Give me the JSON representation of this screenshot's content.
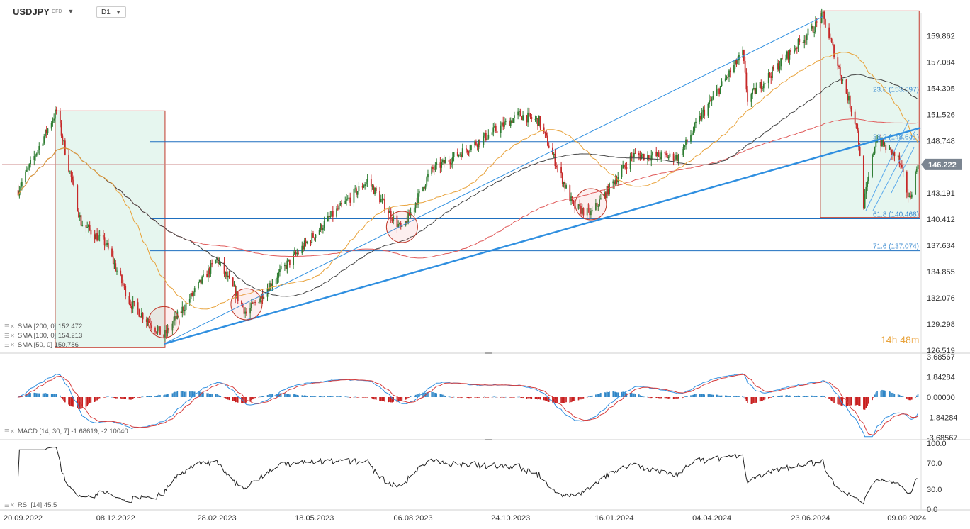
{
  "header": {
    "symbol": "USDJPY",
    "symbol_sub": "CFD",
    "timeframe": "D1"
  },
  "countdown": {
    "hours": "14",
    "h": "h",
    "minutes": "48",
    "m": "m"
  },
  "colors": {
    "up": "#2e7d32",
    "down": "#c62828",
    "sma200": "#e05a5a",
    "sma100": "#444444",
    "sma50": "#e8a23a",
    "trend": "#2f8fe0",
    "level": "#1e6fbf",
    "zone_fill": "#e6f6ef",
    "zone_border": "#c0392b",
    "macd_line": "#2f8fe0",
    "signal_line": "#d63c3c",
    "hist_pos": "#2f86c7",
    "hist_neg": "#c81e1e"
  },
  "chart_data": [
    {
      "type": "candlestick",
      "symbol": "USDJPY",
      "price_axis": [
        "159.862",
        "157.084",
        "154.305",
        "151.526",
        "148.748",
        "146.222",
        "143.191",
        "140.412",
        "137.634",
        "134.855",
        "132.076",
        "129.298",
        "126.519"
      ],
      "ylim": [
        126.519,
        162.0
      ],
      "x_labels": [
        "20.09.2022",
        "08.12.2022",
        "28.02.2023",
        "18.05.2023",
        "06.08.2023",
        "24.10.2023",
        "16.01.2024",
        "04.04.2024",
        "23.06.2024",
        "09.09.2024"
      ],
      "current_price": "146.222",
      "close_anchors": [
        [
          "2022-09-20",
          143.5
        ],
        [
          "2022-10-21",
          151.9
        ],
        [
          "2022-11-10",
          140.0
        ],
        [
          "2022-11-30",
          137.8
        ],
        [
          "2022-12-20",
          131.5
        ],
        [
          "2023-01-16",
          128.0
        ],
        [
          "2023-02-28",
          136.2
        ],
        [
          "2023-03-24",
          130.4
        ],
        [
          "2023-04-20",
          134.8
        ],
        [
          "2023-05-30",
          140.5
        ],
        [
          "2023-06-30",
          144.5
        ],
        [
          "2023-07-28",
          139.2
        ],
        [
          "2023-08-20",
          145.5
        ],
        [
          "2023-09-20",
          148.0
        ],
        [
          "2023-10-31",
          151.5
        ],
        [
          "2023-11-16",
          150.8
        ],
        [
          "2023-12-14",
          141.7
        ],
        [
          "2023-12-28",
          141.0
        ],
        [
          "2024-01-31",
          147.2
        ],
        [
          "2024-03-08",
          147.0
        ],
        [
          "2024-03-27",
          151.5
        ],
        [
          "2024-04-29",
          158.0
        ],
        [
          "2024-05-03",
          153.1
        ],
        [
          "2024-05-31",
          157.2
        ],
        [
          "2024-06-26",
          160.8
        ],
        [
          "2024-07-03",
          161.9
        ],
        [
          "2024-07-31",
          150.0
        ],
        [
          "2024-08-05",
          142.0
        ],
        [
          "2024-08-15",
          149.0
        ],
        [
          "2024-09-02",
          146.8
        ],
        [
          "2024-09-11",
          142.5
        ],
        [
          "2024-09-18",
          146.222
        ]
      ],
      "levels": [
        {
          "label": "23.6 (153.697)",
          "value": 153.697
        },
        {
          "label": "38.2 (148.641)",
          "value": 148.641
        },
        {
          "label": "61.8 (140.468)",
          "value": 140.468
        },
        {
          "label": "71.6 (137.074)",
          "value": 137.074
        }
      ],
      "trendlines": [
        {
          "from": [
            "2023-01-16",
            127.2
          ],
          "to": [
            "2024-09-20",
            150.1
          ]
        },
        {
          "from": [
            "2023-01-16",
            127.2
          ],
          "to": [
            "2024-07-03",
            161.9
          ]
        }
      ],
      "zones": [
        {
          "from": "2022-10-20",
          "to": "2023-01-17"
        },
        {
          "from": "2024-07-01",
          "to": "2024-09-19"
        }
      ],
      "circles": [
        {
          "date": "2023-01-16",
          "value": 129.5
        },
        {
          "date": "2023-03-24",
          "value": 131.4
        },
        {
          "date": "2023-07-28",
          "value": 139.6
        },
        {
          "date": "2023-12-28",
          "value": 142.0
        }
      ],
      "legend": [
        {
          "text": "SMA [200, 0] 152.472"
        },
        {
          "text": "SMA [100, 0] 154.213"
        },
        {
          "text": "SMA [50, 0] 150.786"
        }
      ]
    },
    {
      "type": "macd",
      "name": "MACD [14, 30, 7] -1.68619, -2.10040",
      "axis": [
        "3.68567",
        "1.84284",
        "0.00000",
        "-1.84284",
        "-3.68567"
      ],
      "ylim": [
        -3.68567,
        3.68567
      ]
    },
    {
      "type": "rsi",
      "name": "RSI [14] 45.5",
      "axis": [
        "100.0",
        "70.0",
        "30.0",
        "0.0"
      ],
      "ylim": [
        0,
        100
      ]
    }
  ]
}
